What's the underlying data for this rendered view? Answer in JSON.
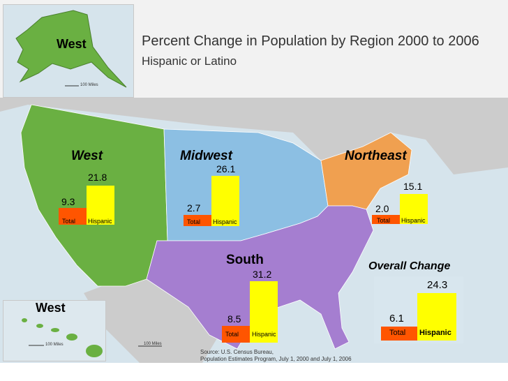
{
  "title": "Percent Change in Population by Region 2000 to 2006",
  "subtitle": "Hispanic or Latino",
  "inset_alaska": {
    "label": "West",
    "scale": "100 Miles"
  },
  "inset_hawaii": {
    "label": "West",
    "scale": "100 Miles"
  },
  "main_scale": "100 Miles",
  "source": [
    "Source: U.S. Census Bureau,",
    "Population Estimates Program, July 1, 2000 and July 1, 2006"
  ],
  "colors": {
    "west": "#6ab042",
    "midwest": "#8cbfe3",
    "northeast": "#f0a050",
    "south": "#a57ed0",
    "total": "#ff5500",
    "hispanic": "#ffff00",
    "ocean": "#d6e4ec",
    "land": "#cccccc"
  },
  "regions": [
    {
      "name": "West",
      "total": "9.3",
      "hispanic": "21.8",
      "total_label": "Total",
      "hispanic_label": "Hispanic"
    },
    {
      "name": "Midwest",
      "total": "2.7",
      "hispanic": "26.1",
      "total_label": "Total",
      "hispanic_label": "Hispanic"
    },
    {
      "name": "Northeast",
      "total": "2.0",
      "hispanic": "15.1",
      "total_label": "Total",
      "hispanic_label": "Hispanic"
    },
    {
      "name": "South",
      "total": "8.5",
      "hispanic": "31.2",
      "total_label": "Total",
      "hispanic_label": "Hispanic"
    }
  ],
  "overall": {
    "title": "Overall Change",
    "total": "6.1",
    "hispanic": "24.3",
    "total_label": "Total",
    "hispanic_label": "Hispanic"
  }
}
